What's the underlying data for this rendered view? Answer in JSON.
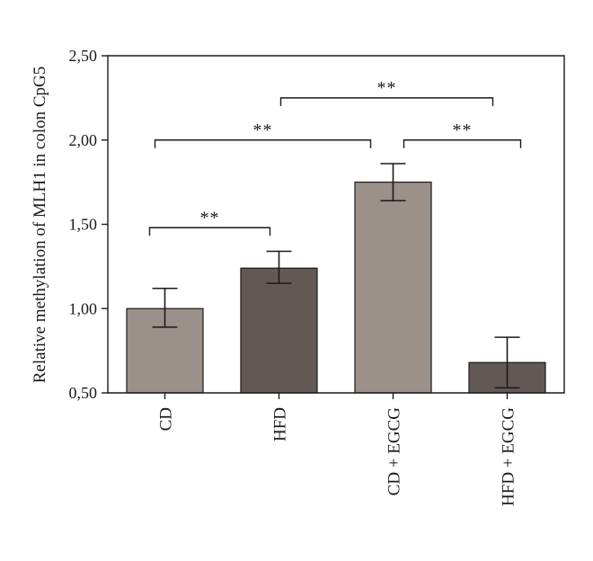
{
  "chart_data": {
    "type": "bar",
    "categories": [
      "CD",
      "HFD",
      "CD + EGCG",
      "HFD + EGCG"
    ],
    "values": [
      1.0,
      1.24,
      1.75,
      0.68
    ],
    "errors": [
      {
        "low": 0.89,
        "high": 1.12
      },
      {
        "low": 1.15,
        "high": 1.34
      },
      {
        "low": 1.64,
        "high": 1.86
      },
      {
        "low": 0.53,
        "high": 0.83
      }
    ],
    "bar_colors": [
      "#9b908a",
      "#635954",
      "#9b908a",
      "#635954"
    ],
    "ylabel": "Relative methylation of MLH1 in colon CpG5",
    "xlabel": "",
    "ylim": [
      0.5,
      2.5
    ],
    "yticks": [
      0.5,
      1.0,
      1.5,
      2.0,
      2.5
    ],
    "ytick_labels": [
      "0,50",
      "1,00",
      "1,50",
      "2,00",
      "2,50"
    ],
    "grid": false,
    "significance": [
      {
        "from": 0,
        "to": 1,
        "y": 1.48,
        "label": "**"
      },
      {
        "from": 0,
        "to": 2,
        "y": 2.0,
        "label": "**"
      },
      {
        "from": 1,
        "to": 3,
        "y": 2.25,
        "label": "**"
      },
      {
        "from": 2,
        "to": 3,
        "y": 2.0,
        "label": "**"
      }
    ]
  }
}
